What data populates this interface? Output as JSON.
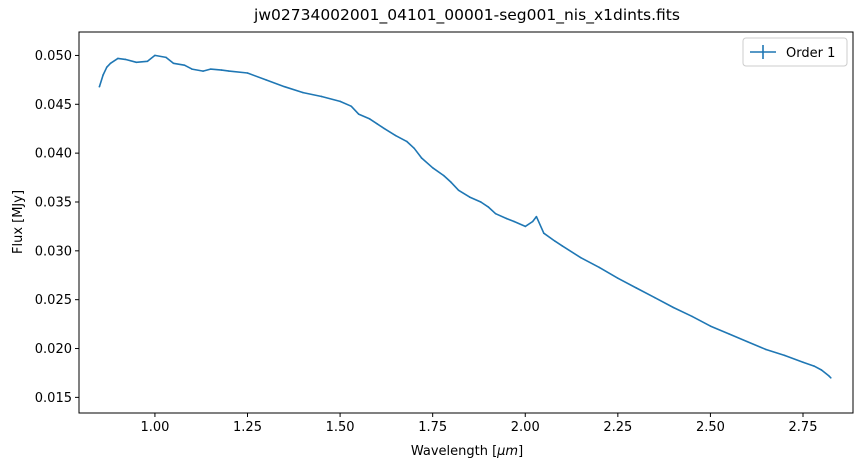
{
  "chart_data": {
    "type": "line",
    "title": "jw02734002001_04101_00001-seg001_nis_x1dints.fits",
    "xlabel_main": "Wavelength [",
    "xlabel_unit": "μm",
    "xlabel_end": "]",
    "ylabel": "Flux [MJy]",
    "xlim": [
      0.795,
      2.885
    ],
    "ylim": [
      0.0134,
      0.0524
    ],
    "x_ticks": [
      1.0,
      1.25,
      1.5,
      1.75,
      2.0,
      2.25,
      2.5,
      2.75
    ],
    "x_tick_labels": [
      "1.00",
      "1.25",
      "1.50",
      "1.75",
      "2.00",
      "2.25",
      "2.50",
      "2.75"
    ],
    "y_ticks": [
      0.015,
      0.02,
      0.025,
      0.03,
      0.035,
      0.04,
      0.045,
      0.05
    ],
    "y_tick_labels": [
      "0.015",
      "0.020",
      "0.025",
      "0.030",
      "0.035",
      "0.040",
      "0.045",
      "0.050"
    ],
    "legend_position": "top-right",
    "grid": false,
    "series": [
      {
        "name": "Order 1",
        "color": "#1f77b4",
        "x": [
          0.85,
          0.86,
          0.87,
          0.88,
          0.9,
          0.92,
          0.95,
          0.98,
          1.0,
          1.03,
          1.05,
          1.08,
          1.1,
          1.13,
          1.15,
          1.18,
          1.2,
          1.25,
          1.3,
          1.35,
          1.4,
          1.45,
          1.5,
          1.53,
          1.55,
          1.58,
          1.6,
          1.62,
          1.65,
          1.68,
          1.7,
          1.72,
          1.75,
          1.78,
          1.8,
          1.82,
          1.85,
          1.88,
          1.9,
          1.92,
          1.95,
          1.97,
          2.0,
          2.02,
          2.03,
          2.05,
          2.08,
          2.1,
          2.15,
          2.2,
          2.25,
          2.3,
          2.35,
          2.4,
          2.45,
          2.5,
          2.55,
          2.6,
          2.65,
          2.7,
          2.75,
          2.78,
          2.8,
          2.82,
          2.825
        ],
        "y": [
          0.0468,
          0.048,
          0.0488,
          0.0492,
          0.0497,
          0.0496,
          0.0493,
          0.0494,
          0.05,
          0.0498,
          0.0492,
          0.049,
          0.0486,
          0.0484,
          0.0486,
          0.0485,
          0.0484,
          0.0482,
          0.0475,
          0.0468,
          0.0462,
          0.0458,
          0.0453,
          0.0448,
          0.044,
          0.0435,
          0.043,
          0.0425,
          0.0418,
          0.0412,
          0.0405,
          0.0395,
          0.0385,
          0.0377,
          0.037,
          0.0362,
          0.0355,
          0.035,
          0.0345,
          0.0338,
          0.0333,
          0.033,
          0.0325,
          0.033,
          0.0335,
          0.0318,
          0.031,
          0.0305,
          0.0293,
          0.0283,
          0.0272,
          0.0262,
          0.0252,
          0.0242,
          0.0233,
          0.0223,
          0.0215,
          0.0207,
          0.0199,
          0.0193,
          0.0186,
          0.0182,
          0.0178,
          0.0172,
          0.017
        ]
      }
    ]
  }
}
